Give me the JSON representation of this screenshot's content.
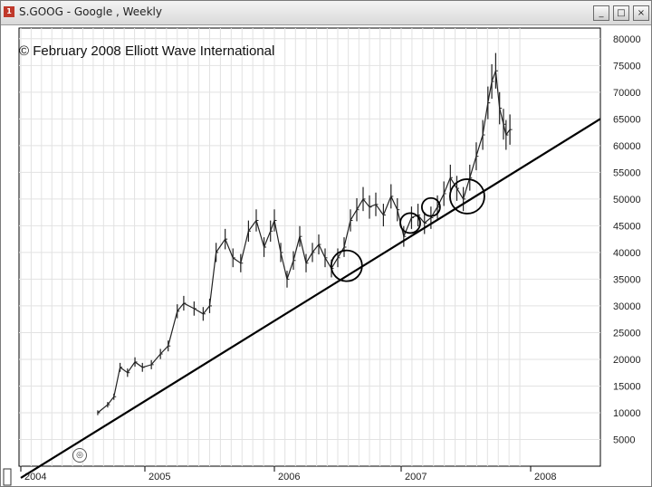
{
  "window": {
    "title": "S.GOOG - Google , Weekly",
    "icon": "chart-app-icon",
    "buttons": [
      "minimize",
      "maximize",
      "close"
    ]
  },
  "annotation": {
    "copyright": "© February 2008 Elliott Wave International"
  },
  "chart_data": {
    "type": "line",
    "title": "",
    "xlabel": "",
    "ylabel": "",
    "x_ticks": [
      "2004",
      "2005",
      "2006",
      "2007",
      "2008"
    ],
    "y_ticks": [
      "5000",
      "10000",
      "15000",
      "20000",
      "25000",
      "30000",
      "35000",
      "40000",
      "45000",
      "50000",
      "55000",
      "60000",
      "65000",
      "70000",
      "75000",
      "80000"
    ],
    "ylim": [
      0,
      82000
    ],
    "xlim": [
      2004.0,
      2008.5
    ],
    "grid": true,
    "series": [
      {
        "style": "weekly-bars",
        "x": [
          2004.62,
          2004.7,
          2004.75,
          2004.8,
          2004.86,
          2004.92,
          2004.98,
          2005.05,
          2005.12,
          2005.18,
          2005.25,
          2005.3,
          2005.38,
          2005.45,
          2005.5,
          2005.55,
          2005.62,
          2005.68,
          2005.74,
          2005.8,
          2005.86,
          2005.92,
          2005.97,
          2006.0,
          2006.05,
          2006.1,
          2006.15,
          2006.2,
          2006.25,
          2006.3,
          2006.35,
          2006.4,
          2006.45,
          2006.5,
          2006.55,
          2006.6,
          2006.65,
          2006.7,
          2006.75,
          2006.8,
          2006.86,
          2006.92,
          2006.97,
          2007.02,
          2007.08,
          2007.13,
          2007.18,
          2007.23,
          2007.28,
          2007.33,
          2007.38,
          2007.43,
          2007.48,
          2007.53,
          2007.58,
          2007.63,
          2007.67,
          2007.7,
          2007.73,
          2007.76,
          2007.79,
          2007.81,
          2007.84
        ],
        "y": [
          10000,
          11500,
          13000,
          18500,
          17500,
          19500,
          18500,
          19000,
          21000,
          22500,
          29000,
          30500,
          29500,
          28500,
          30000,
          40000,
          42500,
          39000,
          38000,
          44000,
          46000,
          41000,
          44000,
          46000,
          40000,
          35000,
          38500,
          43000,
          38000,
          40000,
          41500,
          39000,
          37000,
          39000,
          41000,
          46000,
          48000,
          50000,
          48500,
          49000,
          47000,
          50500,
          48000,
          43000,
          46500,
          47000,
          45500,
          46500,
          48500,
          51000,
          54000,
          52000,
          50000,
          54000,
          58000,
          62000,
          68000,
          72000,
          74000,
          67000,
          64000,
          62000,
          63000
        ]
      },
      {
        "name": "",
        "style": "trendline",
        "x": [
          2004.0,
          2008.5
        ],
        "y": [
          -2200,
          65000
        ]
      }
    ],
    "annotations": [
      {
        "kind": "circle",
        "x": 2006.57,
        "y": 37500
      },
      {
        "kind": "circle",
        "x": 2007.07,
        "y": 45500
      },
      {
        "kind": "circle",
        "x": 2007.23,
        "y": 48500
      },
      {
        "kind": "circle",
        "x": 2007.51,
        "y": 50500
      },
      {
        "kind": "symbol-marker",
        "x": 2004.38,
        "y": 3000,
        "icon": "symbol-marker-icon"
      }
    ],
    "colors": {
      "price": "#222222",
      "trendline": "#000000",
      "grid": "#e2e2e2",
      "axis": "#000000"
    }
  }
}
